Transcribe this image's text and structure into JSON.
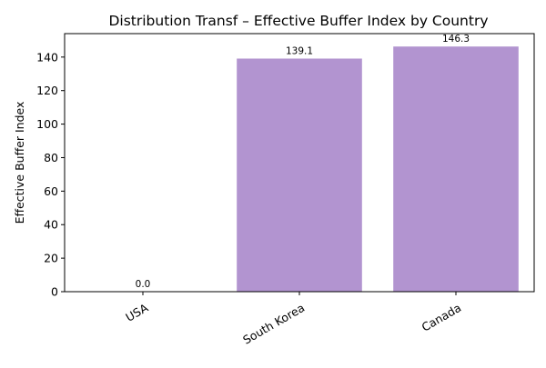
{
  "chart_data": {
    "type": "bar",
    "title": "Distribution Transf – Effective Buffer Index by Country",
    "xlabel": "",
    "ylabel": "Effective Buffer Index",
    "categories": [
      "USA",
      "South Korea",
      "Canada"
    ],
    "values": [
      0.0,
      139.1,
      146.3
    ],
    "data_labels": [
      "0.0",
      "139.1",
      "146.3"
    ],
    "ylim": [
      0,
      154
    ],
    "yticks": [
      0,
      20,
      40,
      60,
      80,
      100,
      120,
      140
    ],
    "bar_color": "#b294d0",
    "grid": false,
    "legend": "none"
  }
}
